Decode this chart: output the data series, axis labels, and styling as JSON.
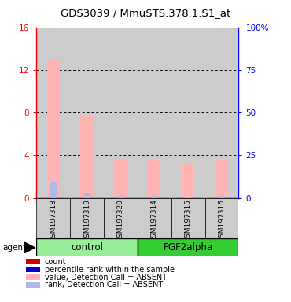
{
  "title": "GDS3039 / MmuSTS.378.1.S1_at",
  "samples": [
    "GSM197318",
    "GSM197319",
    "GSM197320",
    "GSM197314",
    "GSM197315",
    "GSM197316"
  ],
  "value_absent": [
    13.0,
    7.8,
    3.6,
    3.5,
    3.1,
    3.6
  ],
  "rank_absent_pct": [
    9.0,
    3.0,
    1.0,
    1.0,
    0.8,
    1.0
  ],
  "ylim_left": [
    0,
    16
  ],
  "ylim_right": [
    0,
    100
  ],
  "yticks_left": [
    0,
    4,
    8,
    12,
    16
  ],
  "yticks_right": [
    0,
    25,
    50,
    75,
    100
  ],
  "ytick_right_labels": [
    "0",
    "25",
    "50",
    "75",
    "100%"
  ],
  "color_count": "#cc0000",
  "color_rank_present": "#0000cc",
  "color_value_absent": "#ffb3b3",
  "color_rank_absent": "#b0b8e8",
  "legend_labels": [
    "count",
    "percentile rank within the sample",
    "value, Detection Call = ABSENT",
    "rank, Detection Call = ABSENT"
  ],
  "legend_colors": [
    "#cc0000",
    "#0000cc",
    "#ffb3b3",
    "#b0b8e8"
  ],
  "agent_label": "agent",
  "control_label": "control",
  "pgf_label": "PGF2alpha",
  "bg_sample_color": "#cccccc",
  "bg_control_color": "#99ee99",
  "bg_pgf_color": "#33cc33"
}
